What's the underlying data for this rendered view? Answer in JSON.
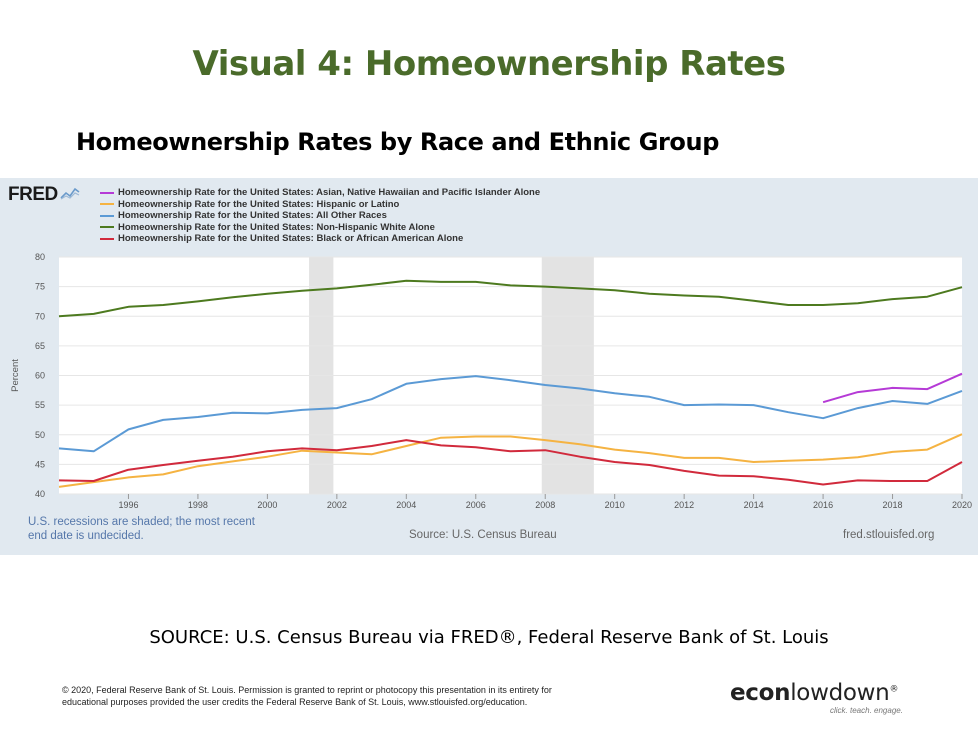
{
  "slide": {
    "title": "Visual 4: Homeownership Rates",
    "subtitle": "Homeownership Rates by Race and Ethnic Group",
    "source": "SOURCE: U.S. Census Bureau via FRED®, Federal Reserve Bank of St. Louis",
    "copyright_line1": "© 2020, Federal Reserve Bank of St. Louis. Permission is granted to reprint or photocopy this presentation in its entirety for",
    "copyright_line2": "educational purposes provided the user credits the Federal Reserve Bank of St. Louis, www.stlouisfed.org/education.",
    "brand": {
      "bold": "econ",
      "rest": "lowdown",
      "mark": "®",
      "tagline": "click. teach. engage."
    }
  },
  "fred": {
    "logo": "FRED",
    "recession_note_line1": "U.S. recessions are shaded; the most recent",
    "recession_note_line2": "end date is undecided.",
    "source_note": "Source: U.S. Census Bureau",
    "url": "fred.stlouisfed.org"
  },
  "chart_data": {
    "type": "line",
    "ylabel": "Percent",
    "ylim": [
      40,
      80
    ],
    "yticks": [
      40,
      45,
      50,
      55,
      60,
      65,
      70,
      75,
      80
    ],
    "xlim": [
      1994,
      2020
    ],
    "xticks": [
      1996,
      1998,
      2000,
      2002,
      2004,
      2006,
      2008,
      2010,
      2012,
      2014,
      2016,
      2018,
      2020
    ],
    "grid": true,
    "legend_position": "top-left",
    "recessions": [
      [
        2001.2,
        2001.9
      ],
      [
        2007.9,
        2009.4
      ]
    ],
    "series": [
      {
        "name": "Homeownership Rate for the United States: Asian, Native Hawaiian and Pacific Islander Alone",
        "color": "#b53ad6",
        "x": [
          2016,
          2017,
          2018,
          2019,
          2020
        ],
        "values": [
          55.5,
          57.2,
          57.9,
          57.7,
          60.3
        ]
      },
      {
        "name": "Homeownership Rate for the United States: Hispanic or Latino",
        "color": "#f5b342",
        "x": [
          1994,
          1995,
          1996,
          1997,
          1998,
          1999,
          2000,
          2001,
          2002,
          2003,
          2004,
          2005,
          2006,
          2007,
          2008,
          2009,
          2010,
          2011,
          2012,
          2013,
          2014,
          2015,
          2016,
          2017,
          2018,
          2019,
          2020
        ],
        "values": [
          41.2,
          42.0,
          42.8,
          43.3,
          44.7,
          45.5,
          46.3,
          47.3,
          47.0,
          46.7,
          48.1,
          49.5,
          49.7,
          49.7,
          49.1,
          48.4,
          47.5,
          46.9,
          46.1,
          46.1,
          45.4,
          45.6,
          45.8,
          46.2,
          47.1,
          47.5,
          50.1
        ]
      },
      {
        "name": "Homeownership Rate for the United States: All Other Races",
        "color": "#5b9ad5",
        "x": [
          1994,
          1995,
          1996,
          1997,
          1998,
          1999,
          2000,
          2001,
          2002,
          2003,
          2004,
          2005,
          2006,
          2007,
          2008,
          2009,
          2010,
          2011,
          2012,
          2013,
          2014,
          2015,
          2016,
          2017,
          2018,
          2019,
          2020
        ],
        "values": [
          47.7,
          47.2,
          50.9,
          52.5,
          53.0,
          53.7,
          53.6,
          54.2,
          54.5,
          56.0,
          58.6,
          59.4,
          59.9,
          59.2,
          58.4,
          57.8,
          57.0,
          56.4,
          55.0,
          55.1,
          55.0,
          53.8,
          52.8,
          54.5,
          55.7,
          55.2,
          57.4
        ]
      },
      {
        "name": "Homeownership Rate for the United States: Non-Hispanic White Alone",
        "color": "#4d7a1f",
        "x": [
          1994,
          1995,
          1996,
          1997,
          1998,
          1999,
          2000,
          2001,
          2002,
          2003,
          2004,
          2005,
          2006,
          2007,
          2008,
          2009,
          2010,
          2011,
          2012,
          2013,
          2014,
          2015,
          2016,
          2017,
          2018,
          2019,
          2020
        ],
        "values": [
          70.0,
          70.4,
          71.6,
          71.9,
          72.5,
          73.2,
          73.8,
          74.3,
          74.7,
          75.3,
          76.0,
          75.8,
          75.8,
          75.2,
          75.0,
          74.7,
          74.4,
          73.8,
          73.5,
          73.3,
          72.6,
          71.9,
          71.9,
          72.2,
          72.9,
          73.3,
          74.9
        ]
      },
      {
        "name": "Homeownership Rate for the United States: Black or African American Alone",
        "color": "#d12a3c",
        "x": [
          1994,
          1995,
          1996,
          1997,
          1998,
          1999,
          2000,
          2001,
          2002,
          2003,
          2004,
          2005,
          2006,
          2007,
          2008,
          2009,
          2010,
          2011,
          2012,
          2013,
          2014,
          2015,
          2016,
          2017,
          2018,
          2019,
          2020
        ],
        "values": [
          42.3,
          42.2,
          44.1,
          44.9,
          45.6,
          46.3,
          47.2,
          47.7,
          47.4,
          48.1,
          49.1,
          48.2,
          47.9,
          47.2,
          47.4,
          46.3,
          45.4,
          44.9,
          43.9,
          43.1,
          43.0,
          42.4,
          41.6,
          42.3,
          42.2,
          42.2,
          45.4
        ]
      }
    ]
  }
}
